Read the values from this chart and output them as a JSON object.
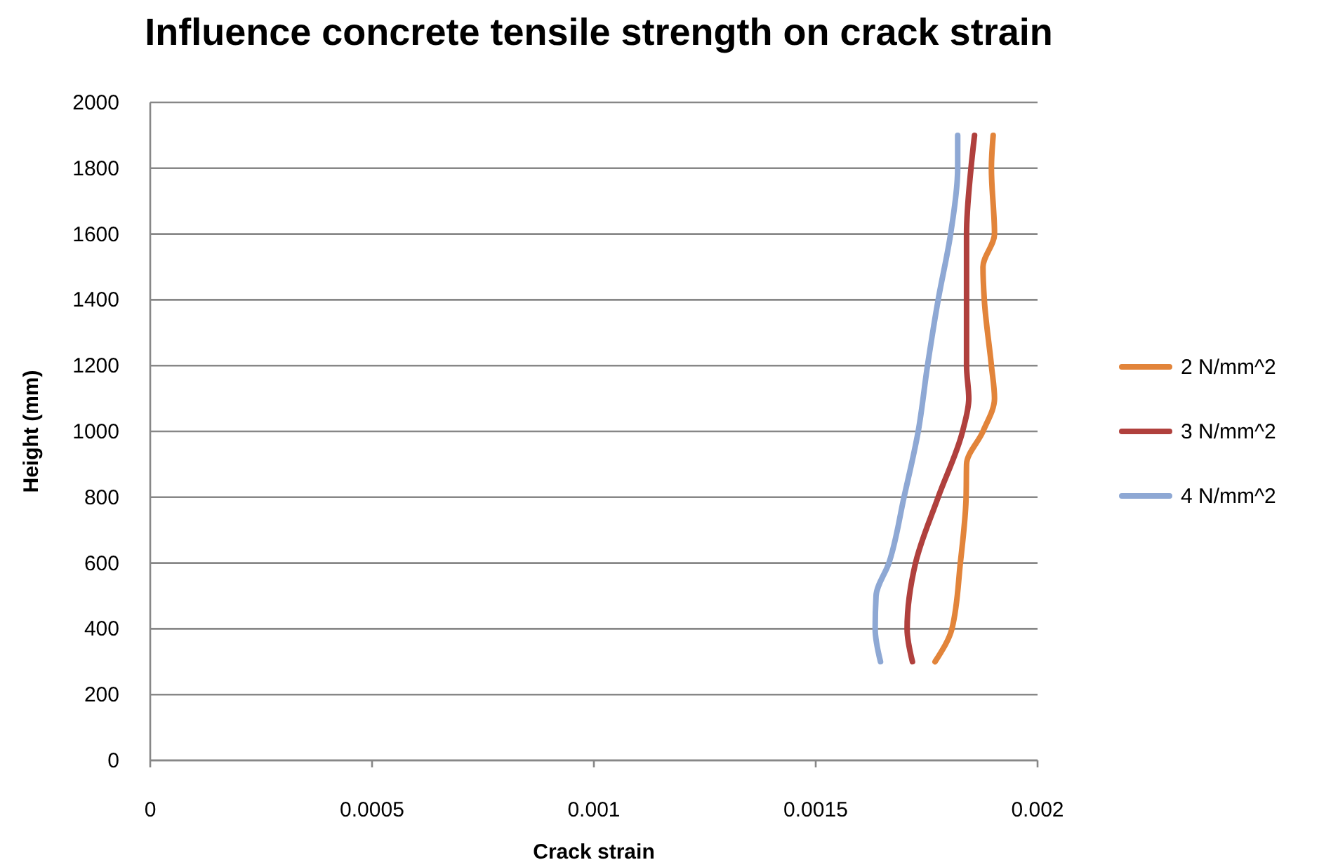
{
  "chart_data": {
    "type": "line",
    "title": "Influence concrete tensile strength on crack strain",
    "xlabel": "Crack strain",
    "ylabel": "Height (mm)",
    "xlim": [
      0,
      0.002
    ],
    "xticks": [
      0,
      0.0005,
      0.001,
      0.0015,
      0.002
    ],
    "ylim": [
      0,
      2000
    ],
    "yticks": [
      0,
      200,
      400,
      600,
      800,
      1000,
      1200,
      1400,
      1600,
      1800,
      2000
    ],
    "grid": "y",
    "legend": "right",
    "marker": "none",
    "line_style": "solid",
    "series": [
      {
        "name": "2 N/mm^2",
        "color": "#e2843a",
        "x": [
          0.001769,
          0.001807,
          0.001826,
          0.001839,
          0.00184,
          0.001877,
          0.001903,
          0.001896,
          0.00188,
          0.001877,
          0.001903,
          0.001896,
          0.0019
        ],
        "values": [
          300,
          400,
          600,
          800,
          900,
          1000,
          1100,
          1200,
          1400,
          1500,
          1600,
          1800,
          1900
        ]
      },
      {
        "name": "3 N/mm^2",
        "color": "#b0403d",
        "x": [
          0.001718,
          0.001706,
          0.001725,
          0.001776,
          0.001831,
          0.001845,
          0.00184,
          0.00184,
          0.00184,
          0.00185,
          0.001858
        ],
        "values": [
          300,
          400,
          600,
          800,
          1000,
          1100,
          1200,
          1400,
          1600,
          1800,
          1900
        ]
      },
      {
        "name": "4 N/mm^2",
        "color": "#8ea8d4",
        "x": [
          0.001646,
          0.001634,
          0.001636,
          0.001665,
          0.001699,
          0.001731,
          0.001752,
          0.001776,
          0.001804,
          0.00182,
          0.00182
        ],
        "values": [
          300,
          400,
          500,
          600,
          800,
          1000,
          1200,
          1400,
          1600,
          1800,
          1900
        ]
      }
    ]
  }
}
